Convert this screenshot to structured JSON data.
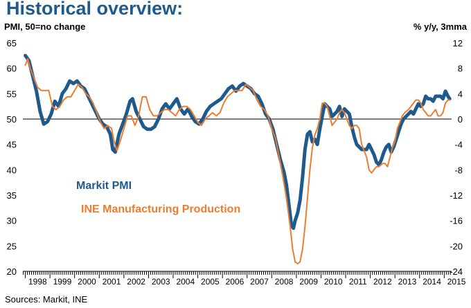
{
  "title": "Historical overview:",
  "left_axis_label": "PMI, 50=no change",
  "right_axis_label": "% y/y, 3mma",
  "source": "Sources: Markit, INE",
  "colors": {
    "title": "#1f5a8c",
    "pmi": "#1f5a8c",
    "production": "#ec7c30",
    "axis": "#000000"
  },
  "chart_data": {
    "type": "line",
    "left_axis": {
      "min": 20,
      "max": 65,
      "ticks": [
        20,
        25,
        30,
        35,
        40,
        45,
        50,
        55,
        60,
        65
      ]
    },
    "right_axis": {
      "min": -24,
      "max": 12,
      "ticks": [
        -24,
        -20,
        -16,
        -12,
        -8,
        -4,
        0,
        4,
        8,
        12
      ]
    },
    "x_axis": {
      "start": 1997.9,
      "end": 2015.3,
      "labels": [
        "1998",
        "1999",
        "2000",
        "2001",
        "2002",
        "2003",
        "2004",
        "2005",
        "2006",
        "2007",
        "2008",
        "2009",
        "2010",
        "2011",
        "2012",
        "2013",
        "2014",
        "2015"
      ]
    },
    "series": [
      {
        "name": "Markit PMI",
        "axis": "left",
        "points": [
          [
            1998.0,
            62.5
          ],
          [
            1998.15,
            61.5
          ],
          [
            1998.3,
            58.5
          ],
          [
            1998.45,
            55.5
          ],
          [
            1998.6,
            51.5
          ],
          [
            1998.75,
            49.0
          ],
          [
            1998.9,
            49.5
          ],
          [
            1999.05,
            51.0
          ],
          [
            1999.2,
            53.5
          ],
          [
            1999.35,
            52.5
          ],
          [
            1999.5,
            55.0
          ],
          [
            1999.65,
            56.0
          ],
          [
            1999.8,
            57.5
          ],
          [
            1999.95,
            57.0
          ],
          [
            2000.1,
            57.5
          ],
          [
            2000.25,
            56.5
          ],
          [
            2000.4,
            56.0
          ],
          [
            2000.55,
            54.5
          ],
          [
            2000.7,
            53.0
          ],
          [
            2000.85,
            51.5
          ],
          [
            2001.0,
            50.0
          ],
          [
            2001.15,
            49.0
          ],
          [
            2001.3,
            48.5
          ],
          [
            2001.45,
            47.0
          ],
          [
            2001.55,
            44.0
          ],
          [
            2001.65,
            43.5
          ],
          [
            2001.8,
            47.0
          ],
          [
            2001.95,
            49.0
          ],
          [
            2002.1,
            51.0
          ],
          [
            2002.25,
            53.5
          ],
          [
            2002.35,
            54.0
          ],
          [
            2002.5,
            51.5
          ],
          [
            2002.65,
            50.0
          ],
          [
            2002.8,
            48.5
          ],
          [
            2002.95,
            48.0
          ],
          [
            2003.1,
            48.0
          ],
          [
            2003.25,
            48.5
          ],
          [
            2003.4,
            50.0
          ],
          [
            2003.55,
            52.0
          ],
          [
            2003.7,
            53.0
          ],
          [
            2003.85,
            52.0
          ],
          [
            2004.0,
            53.0
          ],
          [
            2004.15,
            54.0
          ],
          [
            2004.3,
            52.0
          ],
          [
            2004.45,
            51.0
          ],
          [
            2004.6,
            52.0
          ],
          [
            2004.75,
            50.5
          ],
          [
            2004.9,
            49.5
          ],
          [
            2005.05,
            49.0
          ],
          [
            2005.2,
            50.0
          ],
          [
            2005.35,
            51.5
          ],
          [
            2005.5,
            52.5
          ],
          [
            2005.65,
            53.0
          ],
          [
            2005.8,
            53.5
          ],
          [
            2005.95,
            54.0
          ],
          [
            2006.1,
            55.0
          ],
          [
            2006.25,
            56.0
          ],
          [
            2006.4,
            56.5
          ],
          [
            2006.55,
            55.5
          ],
          [
            2006.7,
            56.5
          ],
          [
            2006.85,
            57.0
          ],
          [
            2007.0,
            56.5
          ],
          [
            2007.15,
            56.0
          ],
          [
            2007.3,
            55.0
          ],
          [
            2007.45,
            54.5
          ],
          [
            2007.6,
            53.0
          ],
          [
            2007.75,
            51.0
          ],
          [
            2007.9,
            50.0
          ],
          [
            2008.05,
            48.0
          ],
          [
            2008.2,
            45.0
          ],
          [
            2008.35,
            42.0
          ],
          [
            2008.5,
            39.5
          ],
          [
            2008.6,
            37.0
          ],
          [
            2008.7,
            33.0
          ],
          [
            2008.8,
            29.0
          ],
          [
            2008.88,
            28.5
          ],
          [
            2008.95,
            30.0
          ],
          [
            2009.05,
            31.5
          ],
          [
            2009.15,
            34.0
          ],
          [
            2009.25,
            38.5
          ],
          [
            2009.35,
            44.0
          ],
          [
            2009.45,
            47.0
          ],
          [
            2009.55,
            47.5
          ],
          [
            2009.65,
            45.5
          ],
          [
            2009.75,
            46.0
          ],
          [
            2009.85,
            45.0
          ],
          [
            2009.95,
            48.0
          ],
          [
            2010.05,
            50.5
          ],
          [
            2010.15,
            53.0
          ],
          [
            2010.25,
            52.5
          ],
          [
            2010.35,
            52.0
          ],
          [
            2010.45,
            50.5
          ],
          [
            2010.55,
            51.0
          ],
          [
            2010.65,
            51.5
          ],
          [
            2010.75,
            52.5
          ],
          [
            2010.85,
            50.5
          ],
          [
            2010.95,
            52.0
          ],
          [
            2011.05,
            51.5
          ],
          [
            2011.15,
            51.0
          ],
          [
            2011.25,
            48.5
          ],
          [
            2011.35,
            46.5
          ],
          [
            2011.45,
            45.0
          ],
          [
            2011.55,
            44.5
          ],
          [
            2011.65,
            44.0
          ],
          [
            2011.75,
            44.0
          ],
          [
            2011.85,
            44.0
          ],
          [
            2011.95,
            45.0
          ],
          [
            2012.05,
            44.0
          ],
          [
            2012.15,
            43.0
          ],
          [
            2012.25,
            41.5
          ],
          [
            2012.35,
            41.0
          ],
          [
            2012.45,
            42.0
          ],
          [
            2012.55,
            43.5
          ],
          [
            2012.65,
            44.5
          ],
          [
            2012.75,
            45.0
          ],
          [
            2012.85,
            43.5
          ],
          [
            2012.95,
            44.5
          ],
          [
            2013.05,
            46.0
          ],
          [
            2013.15,
            47.5
          ],
          [
            2013.25,
            49.0
          ],
          [
            2013.35,
            50.0
          ],
          [
            2013.45,
            50.5
          ],
          [
            2013.55,
            51.0
          ],
          [
            2013.65,
            51.5
          ],
          [
            2013.75,
            51.0
          ],
          [
            2013.85,
            52.0
          ],
          [
            2013.95,
            53.0
          ],
          [
            2014.05,
            52.5
          ],
          [
            2014.15,
            53.0
          ],
          [
            2014.25,
            54.5
          ],
          [
            2014.35,
            54.0
          ],
          [
            2014.45,
            54.0
          ],
          [
            2014.55,
            53.5
          ],
          [
            2014.65,
            54.5
          ],
          [
            2014.75,
            54.5
          ],
          [
            2014.85,
            54.5
          ],
          [
            2014.95,
            54.0
          ],
          [
            2015.05,
            55.5
          ],
          [
            2015.15,
            54.5
          ],
          [
            2015.22,
            54.0
          ]
        ]
      },
      {
        "name": "INE Manufacturing Production",
        "axis": "right",
        "points": [
          [
            1998.0,
            8.5
          ],
          [
            1998.1,
            9.5
          ],
          [
            1998.2,
            8.0
          ],
          [
            1998.35,
            6.5
          ],
          [
            1998.5,
            5.0
          ],
          [
            1998.65,
            4.5
          ],
          [
            1998.8,
            4.5
          ],
          [
            1998.95,
            4.5
          ],
          [
            1999.1,
            2.0
          ],
          [
            1999.25,
            1.5
          ],
          [
            1999.4,
            2.0
          ],
          [
            1999.55,
            3.0
          ],
          [
            1999.7,
            3.5
          ],
          [
            1999.85,
            3.5
          ],
          [
            2000.0,
            4.5
          ],
          [
            2000.15,
            5.5
          ],
          [
            2000.3,
            5.0
          ],
          [
            2000.45,
            4.0
          ],
          [
            2000.6,
            3.5
          ],
          [
            2000.75,
            2.5
          ],
          [
            2000.9,
            1.0
          ],
          [
            2001.05,
            -0.5
          ],
          [
            2001.2,
            -1.5
          ],
          [
            2001.35,
            -1.0
          ],
          [
            2001.5,
            -1.5
          ],
          [
            2001.6,
            -3.5
          ],
          [
            2001.72,
            -5.0
          ],
          [
            2001.85,
            -3.5
          ],
          [
            2002.0,
            -1.5
          ],
          [
            2002.15,
            0.5
          ],
          [
            2002.3,
            0.5
          ],
          [
            2002.45,
            -1.0
          ],
          [
            2002.6,
            0.5
          ],
          [
            2002.75,
            3.5
          ],
          [
            2002.9,
            3.5
          ],
          [
            2003.05,
            1.5
          ],
          [
            2003.2,
            0.5
          ],
          [
            2003.35,
            0.5
          ],
          [
            2003.5,
            1.0
          ],
          [
            2003.65,
            1.5
          ],
          [
            2003.8,
            1.5
          ],
          [
            2003.95,
            1.0
          ],
          [
            2004.1,
            0.5
          ],
          [
            2004.25,
            1.5
          ],
          [
            2004.4,
            2.0
          ],
          [
            2004.55,
            2.0
          ],
          [
            2004.7,
            1.5
          ],
          [
            2004.85,
            0.5
          ],
          [
            2005.0,
            -0.5
          ],
          [
            2005.15,
            -1.0
          ],
          [
            2005.3,
            0.0
          ],
          [
            2005.45,
            0.5
          ],
          [
            2005.6,
            1.0
          ],
          [
            2005.75,
            0.5
          ],
          [
            2005.9,
            1.0
          ],
          [
            2006.05,
            2.5
          ],
          [
            2006.2,
            3.5
          ],
          [
            2006.35,
            4.0
          ],
          [
            2006.5,
            4.5
          ],
          [
            2006.65,
            4.5
          ],
          [
            2006.8,
            4.5
          ],
          [
            2006.95,
            5.5
          ],
          [
            2007.1,
            5.0
          ],
          [
            2007.25,
            4.5
          ],
          [
            2007.4,
            3.0
          ],
          [
            2007.55,
            2.0
          ],
          [
            2007.7,
            1.5
          ],
          [
            2007.85,
            0.5
          ],
          [
            2008.0,
            -1.5
          ],
          [
            2008.15,
            -3.0
          ],
          [
            2008.3,
            -6.0
          ],
          [
            2008.45,
            -9.0
          ],
          [
            2008.6,
            -12.5
          ],
          [
            2008.75,
            -17.0
          ],
          [
            2008.85,
            -20.5
          ],
          [
            2008.95,
            -22.5
          ],
          [
            2009.05,
            -22.8
          ],
          [
            2009.15,
            -22.5
          ],
          [
            2009.25,
            -20.5
          ],
          [
            2009.35,
            -17.0
          ],
          [
            2009.45,
            -12.5
          ],
          [
            2009.55,
            -8.0
          ],
          [
            2009.65,
            -4.5
          ],
          [
            2009.75,
            -2.5
          ],
          [
            2009.85,
            -1.5
          ],
          [
            2009.95,
            0.0
          ],
          [
            2010.05,
            2.5
          ],
          [
            2010.15,
            2.5
          ],
          [
            2010.25,
            2.0
          ],
          [
            2010.35,
            0.5
          ],
          [
            2010.45,
            -1.0
          ],
          [
            2010.55,
            -0.5
          ],
          [
            2010.65,
            0.0
          ],
          [
            2010.75,
            1.0
          ],
          [
            2010.85,
            1.5
          ],
          [
            2010.95,
            1.0
          ],
          [
            2011.05,
            0.0
          ],
          [
            2011.15,
            -1.0
          ],
          [
            2011.25,
            -1.5
          ],
          [
            2011.35,
            -1.0
          ],
          [
            2011.45,
            -1.0
          ],
          [
            2011.55,
            -1.5
          ],
          [
            2011.65,
            -4.0
          ],
          [
            2011.75,
            -5.0
          ],
          [
            2011.85,
            -6.0
          ],
          [
            2011.95,
            -8.0
          ],
          [
            2012.05,
            -8.5
          ],
          [
            2012.15,
            -8.0
          ],
          [
            2012.25,
            -7.5
          ],
          [
            2012.35,
            -7.5
          ],
          [
            2012.5,
            -7.0
          ],
          [
            2012.6,
            -7.0
          ],
          [
            2012.7,
            -7.5
          ],
          [
            2012.8,
            -6.0
          ],
          [
            2012.9,
            -4.5
          ],
          [
            2013.0,
            -3.5
          ],
          [
            2013.1,
            -1.5
          ],
          [
            2013.2,
            -0.5
          ],
          [
            2013.3,
            0.5
          ],
          [
            2013.4,
            1.0
          ],
          [
            2013.55,
            1.5
          ],
          [
            2013.65,
            2.0
          ],
          [
            2013.75,
            2.5
          ],
          [
            2013.85,
            3.0
          ],
          [
            2013.95,
            3.0
          ],
          [
            2014.05,
            2.5
          ],
          [
            2014.15,
            1.5
          ],
          [
            2014.25,
            1.0
          ],
          [
            2014.35,
            0.5
          ],
          [
            2014.45,
            0.5
          ],
          [
            2014.55,
            1.0
          ],
          [
            2014.65,
            1.5
          ],
          [
            2014.75,
            0.5
          ],
          [
            2014.85,
            0.5
          ],
          [
            2014.95,
            1.0
          ],
          [
            2015.05,
            2.5
          ],
          [
            2015.15,
            3.0
          ],
          [
            2015.22,
            3.0
          ]
        ]
      }
    ]
  }
}
